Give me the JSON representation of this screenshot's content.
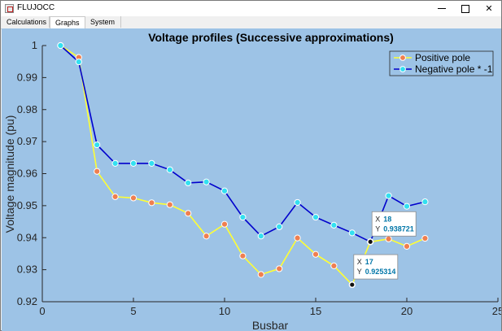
{
  "window": {
    "title": "FLUJOCC"
  },
  "tabs": [
    {
      "label": "Calculations",
      "active": false
    },
    {
      "label": "Graphs",
      "active": true
    },
    {
      "label": "System",
      "active": false
    }
  ],
  "colors": {
    "panel_bg": "#9dc3e6",
    "positive_line": "#ffff33",
    "positive_marker": "#ef7f50",
    "negative_line": "#0000cc",
    "negative_marker": "#33e0f0"
  },
  "chart_data": {
    "type": "line",
    "title": "Voltage profiles (Successive approximations)",
    "xlabel": "Busbar",
    "ylabel": "Voltage magnitude (pu)",
    "xlim": [
      0,
      25
    ],
    "ylim": [
      0.92,
      1.0
    ],
    "xticks": [
      "0",
      "5",
      "10",
      "15",
      "20",
      "25"
    ],
    "yticks": [
      "0.92",
      "0.93",
      "0.94",
      "0.95",
      "0.96",
      "0.97",
      "0.98",
      "0.99",
      "1"
    ],
    "legend_position": "top-right",
    "series": [
      {
        "name": "Positive pole",
        "x": [
          1,
          2,
          3,
          4,
          5,
          6,
          7,
          8,
          9,
          10,
          11,
          12,
          13,
          14,
          15,
          16,
          17,
          18,
          19,
          20,
          21
        ],
        "y": [
          1.0,
          0.9963,
          0.9607,
          0.9528,
          0.9524,
          0.9509,
          0.9503,
          0.9476,
          0.9405,
          0.9442,
          0.9343,
          0.9285,
          0.9303,
          0.9399,
          0.9348,
          0.9312,
          0.925314,
          0.9387,
          0.9396,
          0.9373,
          0.9398
        ]
      },
      {
        "name": "Negative pole * -1",
        "x": [
          1,
          2,
          3,
          4,
          5,
          6,
          7,
          8,
          9,
          10,
          11,
          12,
          13,
          14,
          15,
          16,
          17,
          18,
          19,
          20,
          21
        ],
        "y": [
          1.0,
          0.9949,
          0.969,
          0.9632,
          0.9632,
          0.9632,
          0.9612,
          0.9571,
          0.9574,
          0.9546,
          0.9464,
          0.9405,
          0.9434,
          0.951,
          0.9464,
          0.9439,
          0.9415,
          0.938721,
          0.9531,
          0.9498,
          0.9512
        ]
      }
    ],
    "datatips": [
      {
        "x_label": "X",
        "x_value": "17",
        "y_label": "Y",
        "y_value": "0.925314",
        "series": 0,
        "index": 16
      },
      {
        "x_label": "X",
        "x_value": "18",
        "y_label": "Y",
        "y_value": "0.938721",
        "series": 1,
        "index": 17
      }
    ]
  }
}
